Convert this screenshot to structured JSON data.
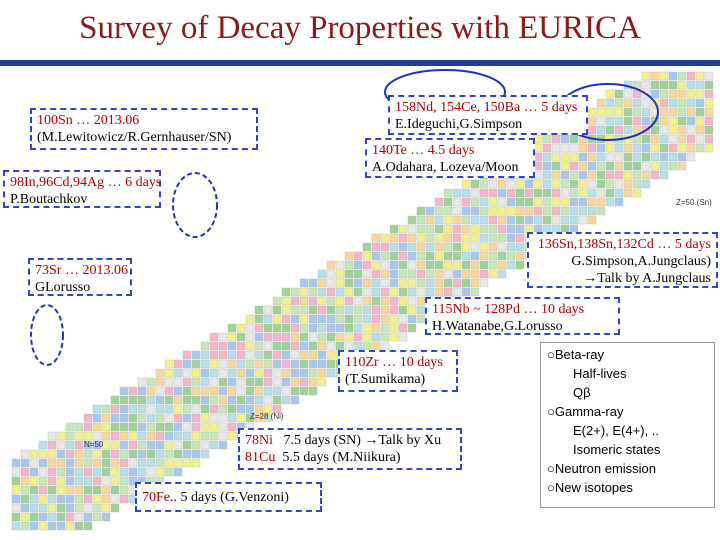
{
  "title": "Survey of Decay Properties with EURICA",
  "boxes": [
    [
      "100Sn … 2013.06",
      "(M.Lewitowicz/R.Gernhauser/SN)"
    ],
    [
      "158Nd, 154Ce, 150Ba … 5 days",
      "E.Ideguchi,G.Simpson"
    ],
    [
      "140Te … 4.5 days",
      "A.Odahara, Lozeva/Moon"
    ],
    [
      "98In,96Cd,94Ag … 6 days",
      "P.Boutachkov"
    ],
    [
      "73Sr … 2013.06",
      "GLorusso"
    ],
    [
      "136Sn,138Sn,132Cd … 5 days",
      "G.Simpson,A.Jungclaus)",
      "→Talk by A.Jungclaus"
    ],
    [
      "115Nb ~ 128Pd … 10 days",
      "H.Watanabe,G.Lorusso"
    ],
    [
      "110Zr … 10 days",
      "(T.Sumikama)"
    ],
    [
      "78Ni",
      "7.5 days (SN) →Talk by Xu",
      "81Cu",
      "5.5 days (M.Niikura)"
    ],
    [
      "70Fe",
      ".. 5 days (G.Venzoni)"
    ]
  ],
  "features": [
    "○Beta-ray",
    "Half-lives",
    "Qβ",
    "○Gamma-ray",
    "E(2+), E(4+), ..",
    "Isomeric states",
    "○Neutron emission",
    "○New isotopes"
  ],
  "chart_labels": [
    "Z=50 (Sn)",
    "N=50",
    "Z=28 (Ni)"
  ]
}
